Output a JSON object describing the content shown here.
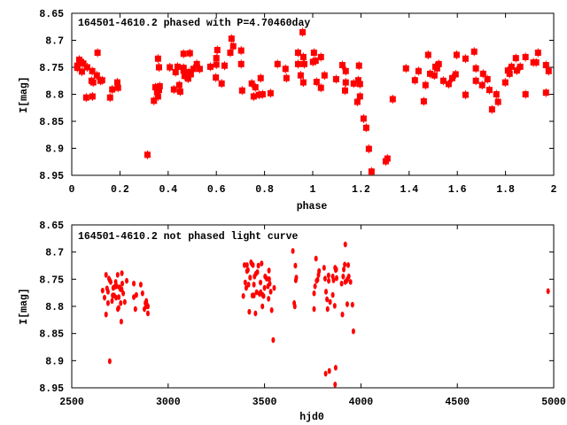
{
  "colors": {
    "points": "#ff0000",
    "axes": "#000000"
  },
  "chart_data": [
    {
      "type": "scatter",
      "title": "164501-4610.2 phased with P=4.70460day",
      "xlabel": "phase",
      "ylabel": "I[mag]",
      "xlim": [
        0,
        2
      ],
      "ylim": [
        8.95,
        8.65
      ],
      "y_inverted": true,
      "xticks": [
        "0",
        "0.2",
        "0.4",
        "0.6",
        "0.8",
        "1",
        "1.2",
        "1.4",
        "1.6",
        "1.8",
        "2"
      ],
      "yticks": [
        "8.65",
        "8.7",
        "8.75",
        "8.8",
        "8.85",
        "8.9",
        "8.95"
      ],
      "grid": false,
      "points": [
        [
          0.023,
          8.747
        ],
        [
          0.023,
          8.751
        ],
        [
          0.031,
          8.736
        ],
        [
          0.039,
          8.74
        ],
        [
          0.048,
          8.743
        ],
        [
          0.042,
          8.758
        ],
        [
          0.064,
          8.75
        ],
        [
          0.085,
          8.757
        ],
        [
          0.104,
          8.765
        ],
        [
          0.107,
          8.723
        ],
        [
          0.082,
          8.775
        ],
        [
          0.089,
          8.778
        ],
        [
          0.119,
          8.775
        ],
        [
          0.126,
          8.774
        ],
        [
          0.06,
          8.806
        ],
        [
          0.086,
          8.804
        ],
        [
          0.159,
          8.806
        ],
        [
          0.168,
          8.791
        ],
        [
          0.189,
          8.778
        ],
        [
          0.192,
          8.788
        ],
        [
          0.314,
          8.912
        ],
        [
          0.341,
          8.812
        ],
        [
          0.347,
          8.787
        ],
        [
          0.354,
          8.796
        ],
        [
          0.358,
          8.804
        ],
        [
          0.362,
          8.792
        ],
        [
          0.365,
          8.785
        ],
        [
          0.358,
          8.734
        ],
        [
          0.362,
          8.75
        ],
        [
          0.407,
          8.75
        ],
        [
          0.424,
          8.791
        ],
        [
          0.431,
          8.759
        ],
        [
          0.439,
          8.749
        ],
        [
          0.446,
          8.783
        ],
        [
          0.45,
          8.795
        ],
        [
          0.464,
          8.725
        ],
        [
          0.464,
          8.751
        ],
        [
          0.464,
          8.756
        ],
        [
          0.468,
          8.766
        ],
        [
          0.483,
          8.771
        ],
        [
          0.486,
          8.759
        ],
        [
          0.49,
          8.724
        ],
        [
          0.494,
          8.763
        ],
        [
          0.505,
          8.753
        ],
        [
          0.519,
          8.744
        ],
        [
          0.531,
          8.753
        ],
        [
          0.575,
          8.749
        ],
        [
          0.598,
          8.769
        ],
        [
          0.6,
          8.745
        ],
        [
          0.6,
          8.733
        ],
        [
          0.604,
          8.718
        ],
        [
          0.622,
          8.78
        ],
        [
          0.634,
          8.747
        ],
        [
          0.658,
          8.723
        ],
        [
          0.663,
          8.697
        ],
        [
          0.67,
          8.711
        ],
        [
          0.703,
          8.719
        ],
        [
          0.703,
          8.744
        ],
        [
          0.707,
          8.793
        ],
        [
          0.747,
          8.78
        ],
        [
          0.755,
          8.804
        ],
        [
          0.762,
          8.787
        ],
        [
          0.777,
          8.801
        ],
        [
          0.784,
          8.77
        ],
        [
          0.792,
          8.8
        ],
        [
          0.825,
          8.798
        ],
        [
          0.854,
          8.744
        ],
        [
          0.887,
          8.753
        ],
        [
          0.891,
          8.77
        ],
        [
          0.939,
          8.723
        ],
        [
          0.939,
          8.744
        ],
        [
          0.95,
          8.765
        ],
        [
          0.958,
          8.685
        ],
        [
          0.961,
          8.731
        ],
        [
          0.965,
          8.744
        ],
        [
          0.961,
          8.778
        ],
        [
          1.001,
          8.74
        ],
        [
          1.005,
          8.723
        ],
        [
          1.012,
          8.738
        ],
        [
          1.016,
          8.777
        ],
        [
          1.034,
          8.731
        ],
        [
          1.034,
          8.788
        ],
        [
          1.049,
          8.765
        ],
        [
          1.097,
          8.772
        ],
        [
          1.123,
          8.746
        ],
        [
          1.134,
          8.793
        ],
        [
          1.137,
          8.757
        ],
        [
          1.137,
          8.778
        ],
        [
          1.17,
          8.78
        ],
        [
          1.185,
          8.814
        ],
        [
          1.189,
          8.774
        ],
        [
          1.192,
          8.747
        ],
        [
          1.196,
          8.781
        ],
        [
          1.196,
          8.804
        ],
        [
          1.211,
          8.845
        ],
        [
          1.222,
          8.862
        ],
        [
          1.233,
          8.901
        ],
        [
          1.244,
          8.943
        ],
        [
          1.303,
          8.924
        ],
        [
          1.31,
          8.919
        ],
        [
          1.332,
          8.809
        ],
        [
          1.387,
          8.752
        ],
        [
          1.424,
          8.774
        ],
        [
          1.439,
          8.757
        ],
        [
          1.461,
          8.813
        ],
        [
          1.468,
          8.783
        ],
        [
          1.479,
          8.727
        ],
        [
          1.487,
          8.762
        ],
        [
          1.505,
          8.765
        ],
        [
          1.509,
          8.749
        ],
        [
          1.516,
          8.752
        ],
        [
          1.523,
          8.744
        ],
        [
          1.542,
          8.775
        ],
        [
          1.564,
          8.781
        ],
        [
          1.579,
          8.77
        ],
        [
          1.593,
          8.763
        ],
        [
          1.597,
          8.727
        ],
        [
          1.634,
          8.801
        ],
        [
          1.634,
          8.734
        ],
        [
          1.67,
          8.721
        ],
        [
          1.677,
          8.752
        ],
        [
          1.677,
          8.775
        ],
        [
          1.707,
          8.762
        ],
        [
          1.703,
          8.783
        ],
        [
          1.725,
          8.772
        ],
        [
          1.733,
          8.792
        ],
        [
          1.744,
          8.828
        ],
        [
          1.762,
          8.8
        ],
        [
          1.769,
          8.814
        ],
        [
          1.799,
          8.778
        ],
        [
          1.81,
          8.756
        ],
        [
          1.817,
          8.762
        ],
        [
          1.825,
          8.749
        ],
        [
          1.843,
          8.733
        ],
        [
          1.847,
          8.756
        ],
        [
          1.861,
          8.749
        ],
        [
          1.883,
          8.731
        ],
        [
          1.883,
          8.8
        ],
        [
          1.916,
          8.741
        ],
        [
          1.927,
          8.741
        ],
        [
          1.935,
          8.723
        ],
        [
          1.968,
          8.746
        ],
        [
          1.968,
          8.797
        ],
        [
          1.979,
          8.757
        ]
      ]
    },
    {
      "type": "scatter",
      "title": "164501-4610.2 not phased light curve",
      "xlabel": "hjd0",
      "ylabel": "I[mag]",
      "xlim": [
        2500,
        5000
      ],
      "ylim": [
        8.95,
        8.65
      ],
      "y_inverted": true,
      "xticks": [
        "2500",
        "3000",
        "3500",
        "4000",
        "4500",
        "5000"
      ],
      "yticks": [
        "8.65",
        "8.7",
        "8.75",
        "8.8",
        "8.85",
        "8.9",
        "8.95"
      ],
      "grid": false,
      "points": [
        [
          2660,
          8.771
        ],
        [
          2670,
          8.784
        ],
        [
          2678,
          8.742
        ],
        [
          2678,
          8.815
        ],
        [
          2683,
          8.767
        ],
        [
          2688,
          8.773
        ],
        [
          2688,
          8.794
        ],
        [
          2693,
          8.749
        ],
        [
          2697,
          8.901
        ],
        [
          2697,
          8.752
        ],
        [
          2702,
          8.755
        ],
        [
          2709,
          8.79
        ],
        [
          2712,
          8.78
        ],
        [
          2715,
          8.766
        ],
        [
          2720,
          8.78
        ],
        [
          2723,
          8.764
        ],
        [
          2728,
          8.755
        ],
        [
          2730,
          8.784
        ],
        [
          2733,
          8.763
        ],
        [
          2738,
          8.742
        ],
        [
          2739,
          8.805
        ],
        [
          2743,
          8.803
        ],
        [
          2744,
          8.783
        ],
        [
          2748,
          8.765
        ],
        [
          2752,
          8.768
        ],
        [
          2754,
          8.794
        ],
        [
          2757,
          8.828
        ],
        [
          2759,
          8.769
        ],
        [
          2760,
          8.739
        ],
        [
          2762,
          8.758
        ],
        [
          2767,
          8.776
        ],
        [
          2775,
          8.792
        ],
        [
          2785,
          8.753
        ],
        [
          2822,
          8.758
        ],
        [
          2822,
          8.783
        ],
        [
          2830,
          8.805
        ],
        [
          2835,
          8.779
        ],
        [
          2858,
          8.76
        ],
        [
          2867,
          8.776
        ],
        [
          2877,
          8.805
        ],
        [
          2882,
          8.794
        ],
        [
          2885,
          8.8
        ],
        [
          2887,
          8.79
        ],
        [
          2890,
          8.797
        ],
        [
          2895,
          8.813
        ],
        [
          2895,
          8.8
        ],
        [
          3390,
          8.781
        ],
        [
          3396,
          8.724
        ],
        [
          3400,
          8.756
        ],
        [
          3405,
          8.766
        ],
        [
          3409,
          8.724
        ],
        [
          3409,
          8.735
        ],
        [
          3414,
          8.733
        ],
        [
          3417,
          8.76
        ],
        [
          3421,
          8.81
        ],
        [
          3425,
          8.747
        ],
        [
          3430,
          8.719
        ],
        [
          3435,
          8.722
        ],
        [
          3437,
          8.78
        ],
        [
          3440,
          8.724
        ],
        [
          3445,
          8.76
        ],
        [
          3445,
          8.78
        ],
        [
          3448,
          8.745
        ],
        [
          3453,
          8.813
        ],
        [
          3455,
          8.74
        ],
        [
          3459,
          8.774
        ],
        [
          3463,
          8.737
        ],
        [
          3468,
          8.725
        ],
        [
          3474,
          8.777
        ],
        [
          3479,
          8.756
        ],
        [
          3480,
          8.774
        ],
        [
          3485,
          8.721
        ],
        [
          3489,
          8.8
        ],
        [
          3490,
          8.779
        ],
        [
          3495,
          8.781
        ],
        [
          3500,
          8.766
        ],
        [
          3503,
          8.745
        ],
        [
          3511,
          8.749
        ],
        [
          3518,
          8.763
        ],
        [
          3521,
          8.786
        ],
        [
          3523,
          8.734
        ],
        [
          3524,
          8.75
        ],
        [
          3527,
          8.758
        ],
        [
          3532,
          8.773
        ],
        [
          3537,
          8.807
        ],
        [
          3545,
          8.862
        ],
        [
          3550,
          8.766
        ],
        [
          3647,
          8.698
        ],
        [
          3654,
          8.794
        ],
        [
          3657,
          8.8
        ],
        [
          3660,
          8.725
        ],
        [
          3662,
          8.752
        ],
        [
          3665,
          8.747
        ],
        [
          3757,
          8.776
        ],
        [
          3757,
          8.805
        ],
        [
          3762,
          8.763
        ],
        [
          3767,
          8.712
        ],
        [
          3770,
          8.753
        ],
        [
          3775,
          8.751
        ],
        [
          3780,
          8.742
        ],
        [
          3783,
          8.735
        ],
        [
          3809,
          8.729
        ],
        [
          3814,
          8.749
        ],
        [
          3817,
          8.924
        ],
        [
          3819,
          8.773
        ],
        [
          3824,
          8.787
        ],
        [
          3827,
          8.805
        ],
        [
          3832,
          8.743
        ],
        [
          3833,
          8.753
        ],
        [
          3836,
          8.919
        ],
        [
          3840,
          8.792
        ],
        [
          3854,
          8.745
        ],
        [
          3854,
          8.779
        ],
        [
          3858,
          8.752
        ],
        [
          3864,
          8.799
        ],
        [
          3866,
          8.729
        ],
        [
          3866,
          8.944
        ],
        [
          3869,
          8.733
        ],
        [
          3869,
          8.913
        ],
        [
          3872,
          8.732
        ],
        [
          3874,
          8.748
        ],
        [
          3900,
          8.758
        ],
        [
          3904,
          8.815
        ],
        [
          3908,
          8.745
        ],
        [
          3911,
          8.732
        ],
        [
          3916,
          8.723
        ],
        [
          3919,
          8.686
        ],
        [
          3919,
          8.755
        ],
        [
          3925,
          8.753
        ],
        [
          3929,
          8.796
        ],
        [
          3930,
          8.75
        ],
        [
          3934,
          8.724
        ],
        [
          3937,
          8.745
        ],
        [
          3946,
          8.755
        ],
        [
          3956,
          8.797
        ],
        [
          3961,
          8.846
        ],
        [
          4971,
          8.772
        ]
      ]
    }
  ]
}
